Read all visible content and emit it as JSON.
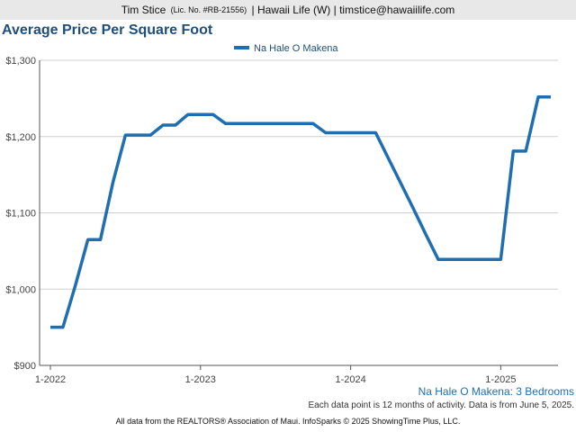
{
  "header": {
    "agent_name": "Tim Stice",
    "license": "(Lic. No. #RB-21556)",
    "brokerage_and_email": "| Hawaii Life (W) | timstice@hawaiilife.com"
  },
  "chart_data": {
    "type": "line",
    "title": "Average Price Per Square Foot",
    "subtitle": "Na Hale O Makena: 3 Bedrooms",
    "xlabel": "",
    "ylabel": "",
    "legend_position": "top-center",
    "grid": true,
    "ylim": [
      900,
      1300
    ],
    "y_ticks": [
      900,
      1000,
      1100,
      1200,
      1300
    ],
    "y_tick_labels": [
      "$900",
      "$1,000",
      "$1,100",
      "$1,200",
      "$1,300"
    ],
    "x_ticks": [
      "2022-01",
      "2023-01",
      "2024-01",
      "2025-01"
    ],
    "x_tick_labels": [
      "1-2022",
      "1-2023",
      "1-2024",
      "1-2025"
    ],
    "series": [
      {
        "name": "Na Hale O Makena",
        "color": "#1f6eb0",
        "x": [
          "2022-01",
          "2022-02",
          "2022-03",
          "2022-04",
          "2022-05",
          "2022-06",
          "2022-07",
          "2022-08",
          "2022-09",
          "2022-10",
          "2022-11",
          "2022-12",
          "2023-01",
          "2023-02",
          "2023-03",
          "2023-04",
          "2023-05",
          "2023-06",
          "2023-07",
          "2023-08",
          "2023-09",
          "2023-10",
          "2023-11",
          "2023-12",
          "2024-01",
          "2024-02",
          "2024-03",
          "2024-04",
          "2024-05",
          "2024-06",
          "2024-07",
          "2024-08",
          "2024-09",
          "2024-10",
          "2024-11",
          "2024-12",
          "2025-01",
          "2025-02",
          "2025-03",
          "2025-04",
          "2025-05"
        ],
        "values": [
          950,
          950,
          1005,
          1065,
          1065,
          1140,
          1202,
          1202,
          1202,
          1215,
          1215,
          1229,
          1229,
          1229,
          1217,
          1217,
          1217,
          1217,
          1217,
          1217,
          1217,
          1217,
          1205,
          1205,
          1205,
          1205,
          1205,
          1172,
          1139,
          1106,
          1072,
          1039,
          1039,
          1039,
          1039,
          1039,
          1039,
          1181,
          1181,
          1252,
          1252
        ]
      }
    ]
  },
  "footnote": "Each data point is 12 months of activity. Data is from June 5, 2025.",
  "source": "All data from the REALTORS® Association of Maui. InfoSparks © 2025 ShowingTime Plus, LLC."
}
